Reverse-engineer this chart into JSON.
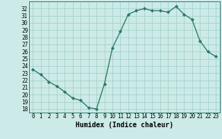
{
  "x": [
    0,
    1,
    2,
    3,
    4,
    5,
    6,
    7,
    8,
    9,
    10,
    11,
    12,
    13,
    14,
    15,
    16,
    17,
    18,
    19,
    20,
    21,
    22,
    23
  ],
  "y": [
    23.5,
    22.8,
    21.8,
    21.2,
    20.4,
    19.5,
    19.2,
    18.2,
    18.0,
    21.5,
    26.5,
    28.8,
    31.2,
    31.7,
    32.0,
    31.7,
    31.7,
    31.5,
    32.3,
    31.2,
    30.5,
    27.5,
    26.0,
    25.3
  ],
  "line_color": "#2a7a68",
  "bg_color": "#cceae7",
  "grid_color": "#9eccc7",
  "xlabel": "Humidex (Indice chaleur)",
  "ylim": [
    17.5,
    33.0
  ],
  "xlim": [
    -0.5,
    23.5
  ],
  "yticks": [
    18,
    19,
    20,
    21,
    22,
    23,
    24,
    25,
    26,
    27,
    28,
    29,
    30,
    31,
    32
  ],
  "xticks": [
    0,
    1,
    2,
    3,
    4,
    5,
    6,
    7,
    8,
    9,
    10,
    11,
    12,
    13,
    14,
    15,
    16,
    17,
    18,
    19,
    20,
    21,
    22,
    23
  ],
  "marker": "D",
  "marker_size": 2.2,
  "line_width": 1.0,
  "xlabel_fontsize": 7,
  "tick_fontsize": 5.5
}
